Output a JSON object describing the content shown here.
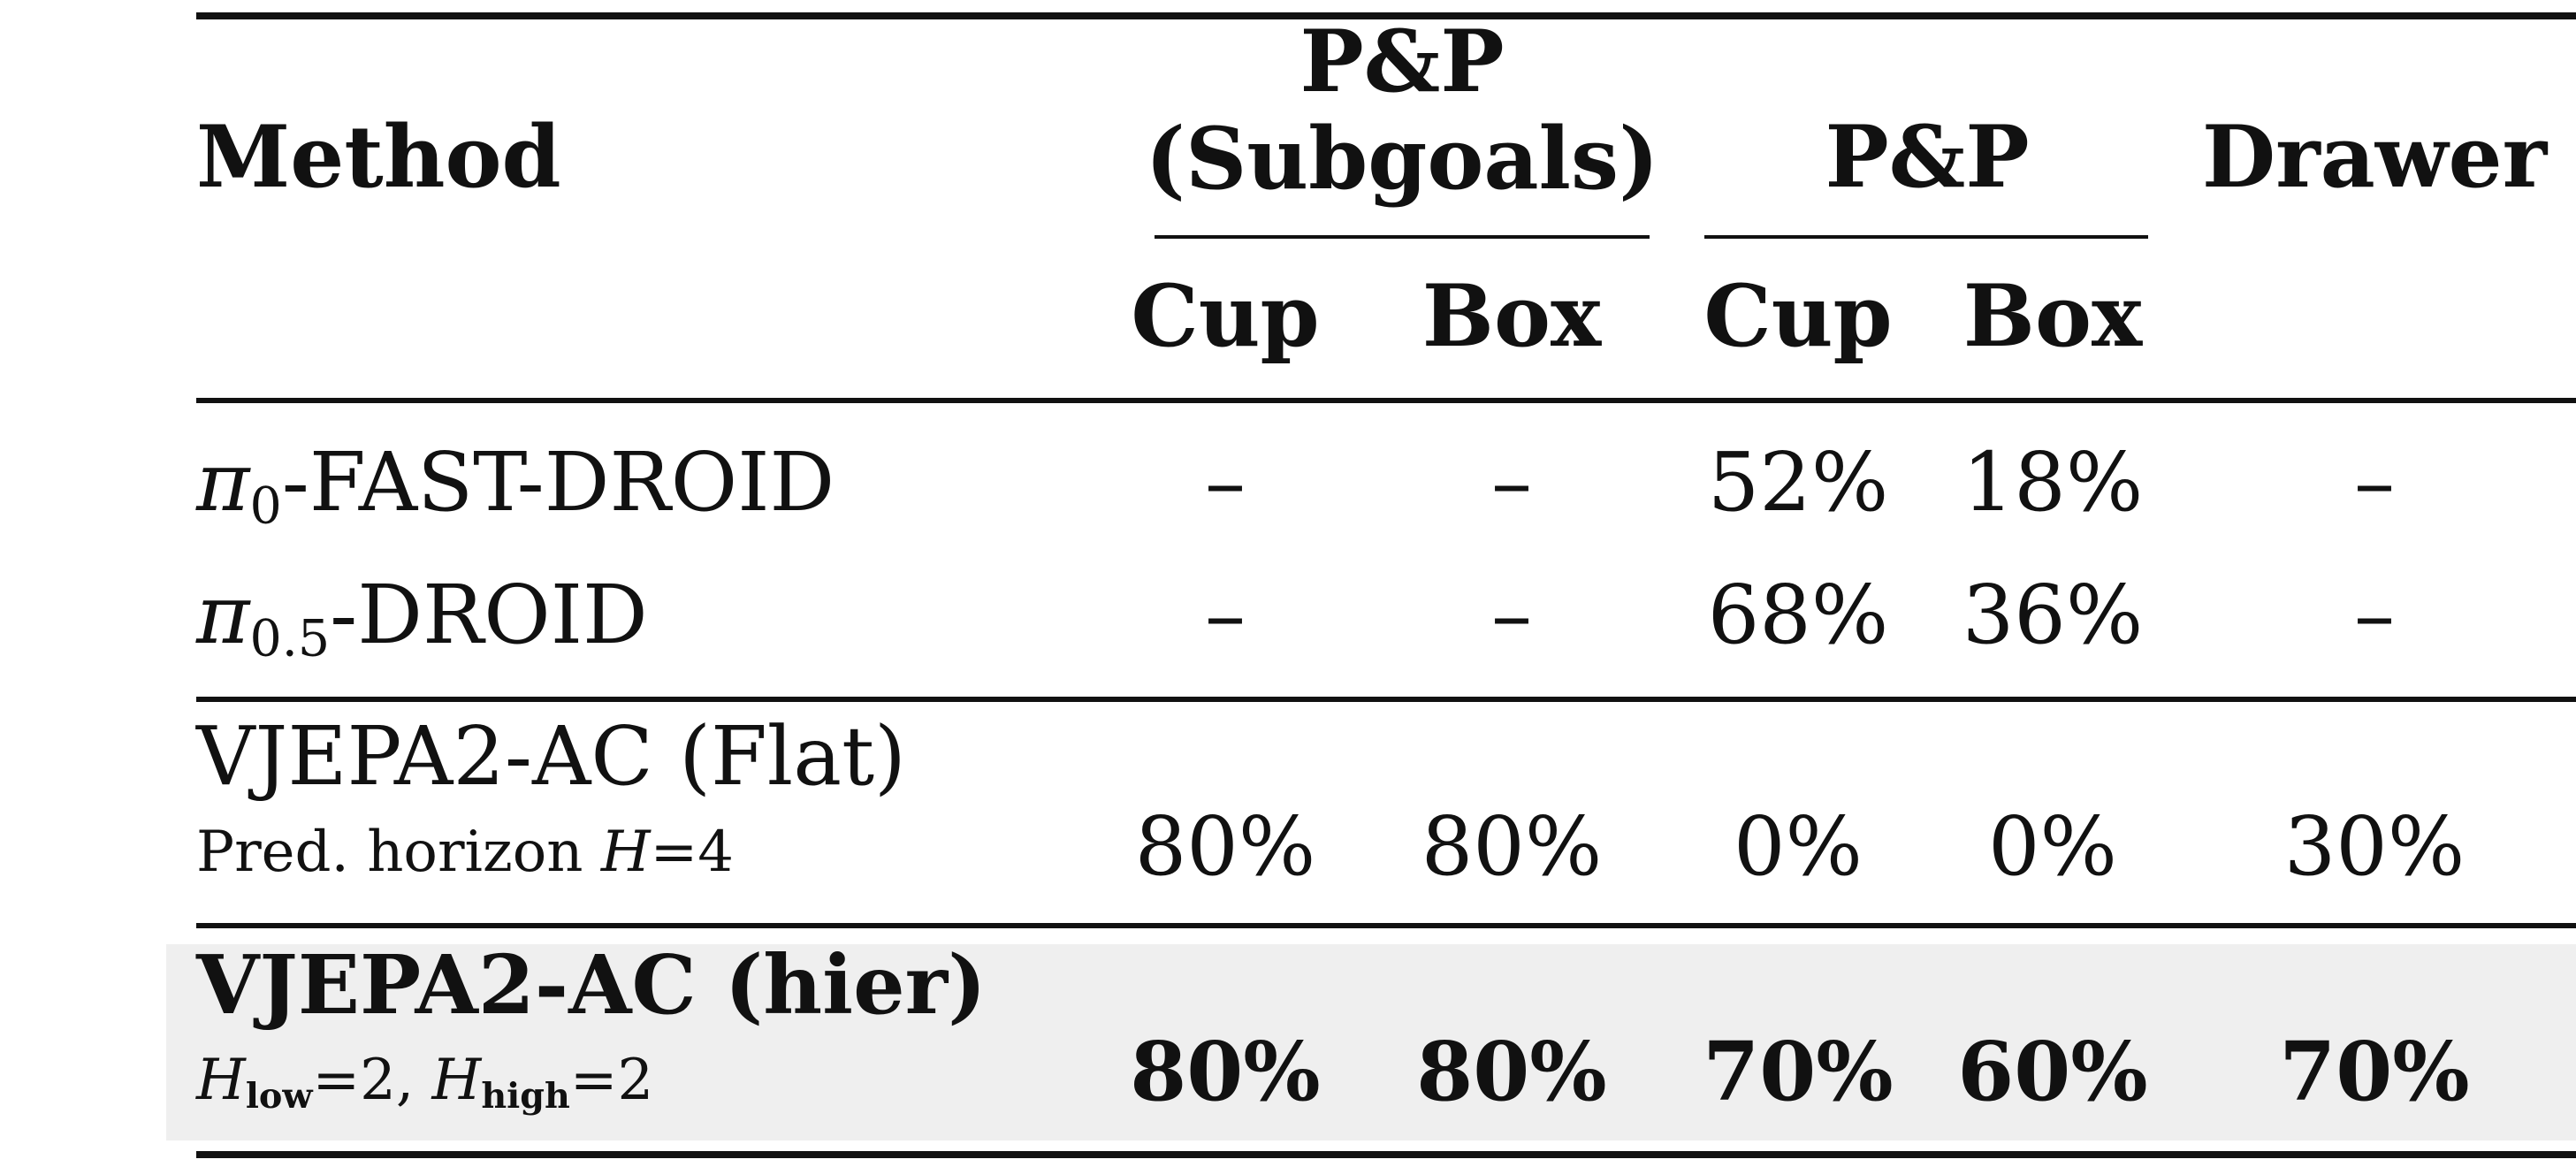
{
  "header": {
    "method": "Method",
    "group_subgoals_line1": "P&P",
    "group_subgoals_line2": "(Subgoals)",
    "group_pp": "P&P",
    "drawer": "Drawer",
    "sub_cup_1": "Cup",
    "sub_box_1": "Box",
    "sub_cup_2": "Cup",
    "sub_box_2": "Box"
  },
  "rows": [
    {
      "name_pi": "π",
      "name_sub": "0",
      "name_rest": "-FAST-DROID",
      "values": [
        "–",
        "–",
        "52%",
        "18%",
        "–"
      ]
    },
    {
      "name_pi": "π",
      "name_sub": "0.5",
      "name_rest": "-DROID",
      "values": [
        "–",
        "–",
        "68%",
        "36%",
        "–"
      ]
    },
    {
      "name": "VJEPA2-AC (Flat)",
      "detail_prefix": "Pred. horizon ",
      "detail_var": "H",
      "detail_eq": "=4",
      "values": [
        "80%",
        "80%",
        "0%",
        "0%",
        "30%"
      ]
    },
    {
      "name": "VJEPA2-AC (hier)",
      "d_var1": "H",
      "d_sub1": "low",
      "d_eq1": "=2, ",
      "d_var2": "H",
      "d_sub2": "high",
      "d_eq2": "=2",
      "values": [
        "80%",
        "80%",
        "70%",
        "60%",
        "70%"
      ],
      "highlight": true
    }
  ]
}
